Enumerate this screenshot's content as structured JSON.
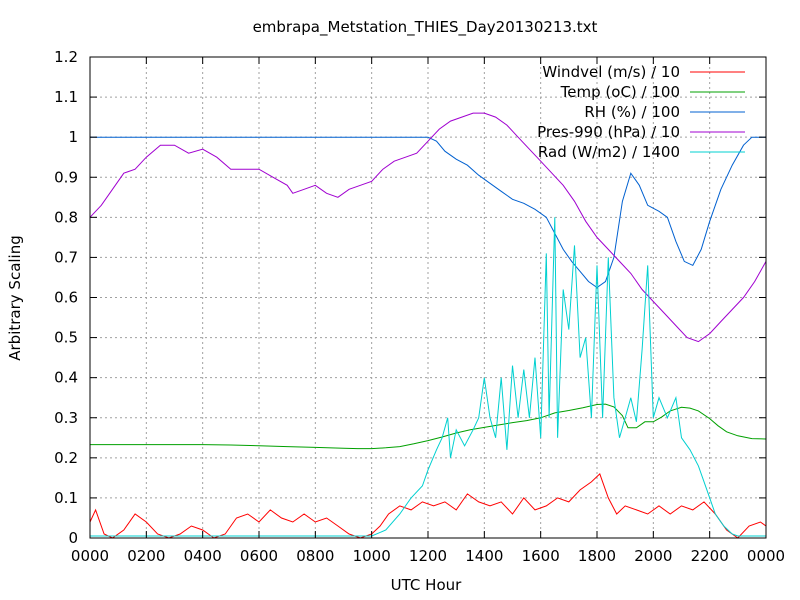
{
  "chart_data": {
    "type": "line",
    "title": "embrapa_Metstation_THIES_Day20130213.txt",
    "xlabel": "UTC Hour",
    "ylabel": "Arbitrary Scaling",
    "xlim": [
      0,
      24
    ],
    "ylim": [
      0,
      1.2
    ],
    "grid": true,
    "legend_position": "top-right",
    "x_tick_labels": [
      "0000",
      "0200",
      "0400",
      "0600",
      "0800",
      "1000",
      "1200",
      "1400",
      "1600",
      "1800",
      "2000",
      "2200",
      "0000"
    ],
    "y_tick_labels": [
      "0",
      "0.1",
      "0.2",
      "0.3",
      "0.4",
      "0.5",
      "0.6",
      "0.7",
      "0.8",
      "0.9",
      "1",
      "1.1",
      "1.2"
    ],
    "series": [
      {
        "name": "Windvel (m/s) / 10",
        "color": "#ff0000",
        "points": [
          [
            0,
            0.04
          ],
          [
            0.2,
            0.07
          ],
          [
            0.5,
            0.01
          ],
          [
            0.8,
            0.0
          ],
          [
            1.2,
            0.02
          ],
          [
            1.6,
            0.06
          ],
          [
            2.0,
            0.04
          ],
          [
            2.4,
            0.01
          ],
          [
            2.8,
            0.0
          ],
          [
            3.2,
            0.01
          ],
          [
            3.6,
            0.03
          ],
          [
            4.0,
            0.02
          ],
          [
            4.4,
            0.0
          ],
          [
            4.8,
            0.01
          ],
          [
            5.2,
            0.05
          ],
          [
            5.6,
            0.06
          ],
          [
            6.0,
            0.04
          ],
          [
            6.4,
            0.07
          ],
          [
            6.8,
            0.05
          ],
          [
            7.2,
            0.04
          ],
          [
            7.6,
            0.06
          ],
          [
            8.0,
            0.04
          ],
          [
            8.4,
            0.05
          ],
          [
            8.8,
            0.03
          ],
          [
            9.2,
            0.01
          ],
          [
            9.6,
            0.0
          ],
          [
            10.0,
            0.01
          ],
          [
            10.3,
            0.03
          ],
          [
            10.6,
            0.06
          ],
          [
            11.0,
            0.08
          ],
          [
            11.4,
            0.07
          ],
          [
            11.8,
            0.09
          ],
          [
            12.2,
            0.08
          ],
          [
            12.6,
            0.09
          ],
          [
            13.0,
            0.07
          ],
          [
            13.4,
            0.11
          ],
          [
            13.8,
            0.09
          ],
          [
            14.2,
            0.08
          ],
          [
            14.6,
            0.09
          ],
          [
            15.0,
            0.06
          ],
          [
            15.4,
            0.1
          ],
          [
            15.8,
            0.07
          ],
          [
            16.2,
            0.08
          ],
          [
            16.6,
            0.1
          ],
          [
            17.0,
            0.09
          ],
          [
            17.4,
            0.12
          ],
          [
            17.8,
            0.14
          ],
          [
            18.1,
            0.16
          ],
          [
            18.4,
            0.1
          ],
          [
            18.7,
            0.06
          ],
          [
            19.0,
            0.08
          ],
          [
            19.4,
            0.07
          ],
          [
            19.8,
            0.06
          ],
          [
            20.2,
            0.08
          ],
          [
            20.6,
            0.06
          ],
          [
            21.0,
            0.08
          ],
          [
            21.4,
            0.07
          ],
          [
            21.8,
            0.09
          ],
          [
            22.2,
            0.06
          ],
          [
            22.6,
            0.02
          ],
          [
            23.0,
            0.0
          ],
          [
            23.4,
            0.03
          ],
          [
            23.8,
            0.04
          ],
          [
            24.0,
            0.03
          ]
        ]
      },
      {
        "name": "Temp (oC) / 100",
        "color": "#00a000",
        "points": [
          [
            0,
            0.233
          ],
          [
            1,
            0.233
          ],
          [
            2,
            0.233
          ],
          [
            3,
            0.233
          ],
          [
            4,
            0.233
          ],
          [
            5,
            0.232
          ],
          [
            6,
            0.23
          ],
          [
            7,
            0.228
          ],
          [
            8,
            0.226
          ],
          [
            9,
            0.224
          ],
          [
            9.5,
            0.223
          ],
          [
            10,
            0.223
          ],
          [
            10.5,
            0.225
          ],
          [
            11,
            0.228
          ],
          [
            11.5,
            0.235
          ],
          [
            12,
            0.243
          ],
          [
            12.5,
            0.252
          ],
          [
            13,
            0.262
          ],
          [
            13.5,
            0.27
          ],
          [
            14,
            0.276
          ],
          [
            14.5,
            0.282
          ],
          [
            15,
            0.288
          ],
          [
            15.5,
            0.293
          ],
          [
            16,
            0.3
          ],
          [
            16.5,
            0.312
          ],
          [
            17,
            0.318
          ],
          [
            17.5,
            0.325
          ],
          [
            18,
            0.333
          ],
          [
            18.3,
            0.334
          ],
          [
            18.6,
            0.327
          ],
          [
            18.9,
            0.305
          ],
          [
            19.1,
            0.275
          ],
          [
            19.4,
            0.275
          ],
          [
            19.7,
            0.29
          ],
          [
            20,
            0.29
          ],
          [
            20.3,
            0.302
          ],
          [
            20.6,
            0.317
          ],
          [
            21,
            0.326
          ],
          [
            21.3,
            0.324
          ],
          [
            21.6,
            0.317
          ],
          [
            22,
            0.298
          ],
          [
            22.3,
            0.28
          ],
          [
            22.6,
            0.265
          ],
          [
            23,
            0.255
          ],
          [
            23.5,
            0.248
          ],
          [
            24,
            0.247
          ]
        ]
      },
      {
        "name": "RH (%) / 100",
        "color": "#0060d0",
        "points": [
          [
            0,
            1.0
          ],
          [
            2,
            1.0
          ],
          [
            4,
            1.0
          ],
          [
            6,
            1.0
          ],
          [
            8,
            1.0
          ],
          [
            10,
            1.0
          ],
          [
            11,
            1.0
          ],
          [
            12,
            1.0
          ],
          [
            12.3,
            0.99
          ],
          [
            12.6,
            0.965
          ],
          [
            13.0,
            0.945
          ],
          [
            13.4,
            0.93
          ],
          [
            13.8,
            0.905
          ],
          [
            14.2,
            0.885
          ],
          [
            14.6,
            0.865
          ],
          [
            15.0,
            0.845
          ],
          [
            15.4,
            0.835
          ],
          [
            15.8,
            0.82
          ],
          [
            16.2,
            0.8
          ],
          [
            16.5,
            0.76
          ],
          [
            16.8,
            0.72
          ],
          [
            17.1,
            0.69
          ],
          [
            17.4,
            0.665
          ],
          [
            17.7,
            0.64
          ],
          [
            18.0,
            0.625
          ],
          [
            18.3,
            0.64
          ],
          [
            18.6,
            0.7
          ],
          [
            18.9,
            0.84
          ],
          [
            19.2,
            0.91
          ],
          [
            19.5,
            0.88
          ],
          [
            19.8,
            0.83
          ],
          [
            20.2,
            0.815
          ],
          [
            20.5,
            0.8
          ],
          [
            20.8,
            0.74
          ],
          [
            21.1,
            0.69
          ],
          [
            21.4,
            0.68
          ],
          [
            21.7,
            0.72
          ],
          [
            22.0,
            0.79
          ],
          [
            22.4,
            0.87
          ],
          [
            22.8,
            0.93
          ],
          [
            23.2,
            0.98
          ],
          [
            23.5,
            1.0
          ],
          [
            24.0,
            1.0
          ]
        ]
      },
      {
        "name": "Pres-990 (hPa) / 10",
        "color": "#a000d0",
        "points": [
          [
            0,
            0.8
          ],
          [
            0.4,
            0.83
          ],
          [
            0.8,
            0.87
          ],
          [
            1.2,
            0.91
          ],
          [
            1.6,
            0.92
          ],
          [
            2.0,
            0.95
          ],
          [
            2.5,
            0.98
          ],
          [
            3.0,
            0.98
          ],
          [
            3.5,
            0.96
          ],
          [
            4.0,
            0.97
          ],
          [
            4.5,
            0.95
          ],
          [
            5.0,
            0.92
          ],
          [
            5.5,
            0.92
          ],
          [
            6.0,
            0.92
          ],
          [
            6.5,
            0.9
          ],
          [
            7.0,
            0.88
          ],
          [
            7.2,
            0.86
          ],
          [
            7.6,
            0.87
          ],
          [
            8.0,
            0.88
          ],
          [
            8.4,
            0.86
          ],
          [
            8.8,
            0.85
          ],
          [
            9.2,
            0.87
          ],
          [
            9.6,
            0.88
          ],
          [
            10.0,
            0.89
          ],
          [
            10.4,
            0.92
          ],
          [
            10.8,
            0.94
          ],
          [
            11.2,
            0.95
          ],
          [
            11.6,
            0.96
          ],
          [
            12.0,
            0.99
          ],
          [
            12.4,
            1.02
          ],
          [
            12.8,
            1.04
          ],
          [
            13.2,
            1.05
          ],
          [
            13.6,
            1.06
          ],
          [
            14.0,
            1.06
          ],
          [
            14.4,
            1.05
          ],
          [
            14.8,
            1.03
          ],
          [
            15.2,
            1.0
          ],
          [
            15.6,
            0.97
          ],
          [
            16.0,
            0.94
          ],
          [
            16.4,
            0.91
          ],
          [
            16.8,
            0.88
          ],
          [
            17.2,
            0.84
          ],
          [
            17.6,
            0.79
          ],
          [
            18.0,
            0.75
          ],
          [
            18.4,
            0.72
          ],
          [
            18.8,
            0.69
          ],
          [
            19.2,
            0.66
          ],
          [
            19.6,
            0.62
          ],
          [
            20.0,
            0.59
          ],
          [
            20.4,
            0.56
          ],
          [
            20.8,
            0.53
          ],
          [
            21.2,
            0.5
          ],
          [
            21.6,
            0.49
          ],
          [
            22.0,
            0.51
          ],
          [
            22.4,
            0.54
          ],
          [
            22.8,
            0.57
          ],
          [
            23.2,
            0.6
          ],
          [
            23.6,
            0.64
          ],
          [
            24.0,
            0.69
          ]
        ]
      },
      {
        "name": "Rad (W/m2) / 1400",
        "color": "#00d0d0",
        "points": [
          [
            0,
            0.005
          ],
          [
            2,
            0.005
          ],
          [
            4,
            0.005
          ],
          [
            6,
            0.005
          ],
          [
            8,
            0.005
          ],
          [
            10,
            0.005
          ],
          [
            10.5,
            0.02
          ],
          [
            11,
            0.06
          ],
          [
            11.4,
            0.1
          ],
          [
            11.8,
            0.13
          ],
          [
            12.0,
            0.17
          ],
          [
            12.3,
            0.22
          ],
          [
            12.5,
            0.25
          ],
          [
            12.7,
            0.3
          ],
          [
            12.8,
            0.2
          ],
          [
            13.0,
            0.27
          ],
          [
            13.3,
            0.23
          ],
          [
            13.6,
            0.27
          ],
          [
            13.8,
            0.3
          ],
          [
            14.0,
            0.4
          ],
          [
            14.2,
            0.3
          ],
          [
            14.4,
            0.25
          ],
          [
            14.6,
            0.4
          ],
          [
            14.8,
            0.22
          ],
          [
            15.0,
            0.43
          ],
          [
            15.2,
            0.3
          ],
          [
            15.4,
            0.42
          ],
          [
            15.6,
            0.3
          ],
          [
            15.8,
            0.45
          ],
          [
            16.0,
            0.25
          ],
          [
            16.2,
            0.71
          ],
          [
            16.3,
            0.3
          ],
          [
            16.5,
            0.8
          ],
          [
            16.6,
            0.25
          ],
          [
            16.8,
            0.62
          ],
          [
            17.0,
            0.52
          ],
          [
            17.2,
            0.73
          ],
          [
            17.4,
            0.45
          ],
          [
            17.6,
            0.5
          ],
          [
            17.8,
            0.3
          ],
          [
            18.0,
            0.68
          ],
          [
            18.2,
            0.3
          ],
          [
            18.4,
            0.7
          ],
          [
            18.6,
            0.35
          ],
          [
            18.8,
            0.25
          ],
          [
            19.0,
            0.3
          ],
          [
            19.2,
            0.35
          ],
          [
            19.4,
            0.29
          ],
          [
            19.6,
            0.47
          ],
          [
            19.8,
            0.68
          ],
          [
            20.0,
            0.3
          ],
          [
            20.2,
            0.35
          ],
          [
            20.5,
            0.3
          ],
          [
            20.8,
            0.35
          ],
          [
            21.0,
            0.25
          ],
          [
            21.3,
            0.22
          ],
          [
            21.6,
            0.18
          ],
          [
            21.9,
            0.12
          ],
          [
            22.2,
            0.06
          ],
          [
            22.5,
            0.03
          ],
          [
            22.8,
            0.01
          ],
          [
            23.0,
            0.005
          ],
          [
            24.0,
            0.005
          ]
        ]
      }
    ]
  }
}
